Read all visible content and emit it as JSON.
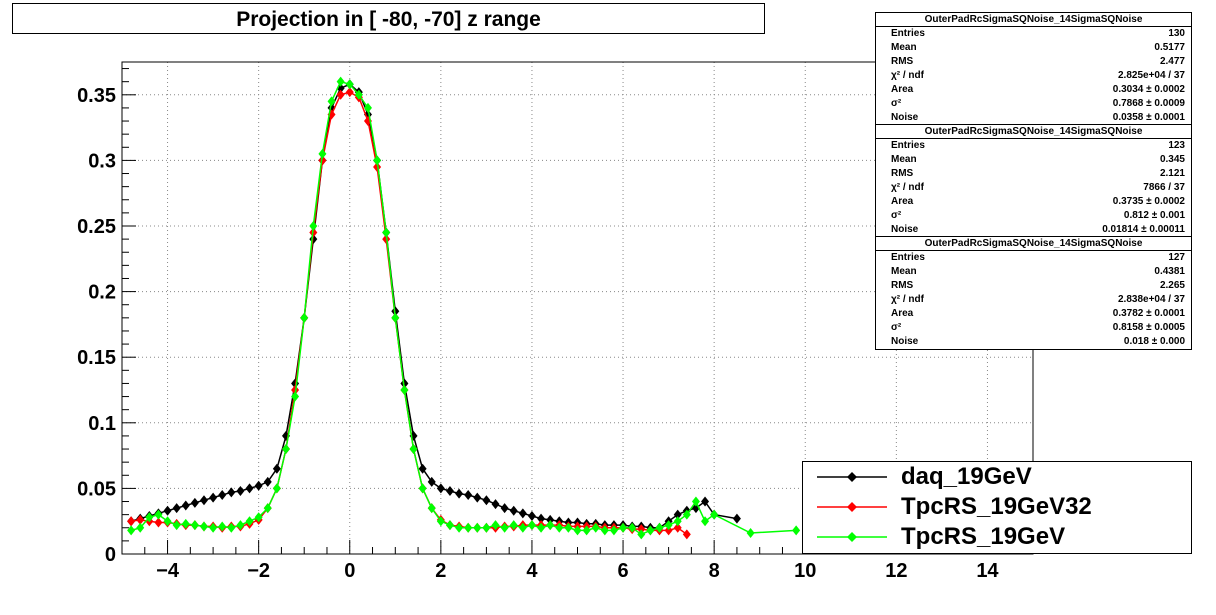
{
  "title": "Projection in [ -80, -70] z range",
  "chart_data": {
    "type": "scatter",
    "xlim": [
      -5,
      15
    ],
    "ylim": [
      0,
      0.375
    ],
    "grid": true,
    "xticks": [
      "−4",
      "−2",
      "0",
      "2",
      "4",
      "6",
      "8",
      "10",
      "12",
      "14"
    ],
    "xtick_values": [
      -4,
      -2,
      0,
      2,
      4,
      6,
      8,
      10,
      12,
      14
    ],
    "yticks": [
      "0",
      "0.05",
      "0.1",
      "0.15",
      "0.2",
      "0.25",
      "0.3",
      "0.35"
    ],
    "ytick_values": [
      0,
      0.05,
      0.1,
      0.15,
      0.2,
      0.25,
      0.3,
      0.35
    ],
    "legend_position": "bottom-right",
    "series": [
      {
        "name": "daq_19GeV",
        "color": "#000000",
        "x": [
          -4.8,
          -4.6,
          -4.4,
          -4.2,
          -4.0,
          -3.8,
          -3.6,
          -3.4,
          -3.2,
          -3.0,
          -2.8,
          -2.6,
          -2.4,
          -2.2,
          -2.0,
          -1.8,
          -1.6,
          -1.4,
          -1.2,
          -1.0,
          -0.8,
          -0.6,
          -0.4,
          -0.2,
          0.0,
          0.2,
          0.4,
          0.6,
          0.8,
          1.0,
          1.2,
          1.4,
          1.6,
          1.8,
          2.0,
          2.2,
          2.4,
          2.6,
          2.8,
          3.0,
          3.2,
          3.4,
          3.6,
          3.8,
          4.0,
          4.2,
          4.4,
          4.6,
          4.8,
          5.0,
          5.2,
          5.4,
          5.6,
          5.8,
          6.0,
          6.2,
          6.4,
          6.6,
          6.8,
          7.0,
          7.2,
          7.4,
          7.6,
          7.8,
          8.0,
          8.5
        ],
        "y": [
          0.025,
          0.027,
          0.029,
          0.031,
          0.033,
          0.035,
          0.037,
          0.039,
          0.041,
          0.043,
          0.045,
          0.047,
          0.048,
          0.05,
          0.052,
          0.055,
          0.065,
          0.09,
          0.13,
          0.18,
          0.24,
          0.3,
          0.34,
          0.355,
          0.358,
          0.352,
          0.335,
          0.3,
          0.245,
          0.185,
          0.13,
          0.09,
          0.065,
          0.055,
          0.05,
          0.048,
          0.046,
          0.045,
          0.043,
          0.041,
          0.038,
          0.035,
          0.033,
          0.031,
          0.029,
          0.027,
          0.026,
          0.025,
          0.024,
          0.024,
          0.023,
          0.023,
          0.022,
          0.022,
          0.022,
          0.021,
          0.021,
          0.02,
          0.02,
          0.025,
          0.03,
          0.033,
          0.035,
          0.04,
          0.03,
          0.027
        ]
      },
      {
        "name": "TpcRS_19GeV32",
        "color": "#ff0000",
        "x": [
          -4.8,
          -4.6,
          -4.4,
          -4.2,
          -4.0,
          -3.8,
          -3.6,
          -3.4,
          -3.2,
          -3.0,
          -2.8,
          -2.6,
          -2.4,
          -2.2,
          -2.0,
          -1.8,
          -1.6,
          -1.4,
          -1.2,
          -1.0,
          -0.8,
          -0.6,
          -0.4,
          -0.2,
          0.0,
          0.2,
          0.4,
          0.6,
          0.8,
          1.0,
          1.2,
          1.4,
          1.6,
          1.8,
          2.0,
          2.2,
          2.4,
          2.6,
          2.8,
          3.0,
          3.2,
          3.4,
          3.6,
          3.8,
          4.0,
          4.2,
          4.4,
          4.6,
          4.8,
          5.0,
          5.2,
          5.4,
          5.6,
          5.8,
          6.0,
          6.2,
          6.4,
          6.6,
          6.8,
          7.0,
          7.2,
          7.4
        ],
        "y": [
          0.025,
          0.026,
          0.025,
          0.024,
          0.024,
          0.023,
          0.022,
          0.022,
          0.021,
          0.021,
          0.02,
          0.021,
          0.021,
          0.023,
          0.026,
          0.035,
          0.05,
          0.08,
          0.125,
          0.18,
          0.245,
          0.3,
          0.335,
          0.35,
          0.352,
          0.348,
          0.33,
          0.295,
          0.24,
          0.18,
          0.125,
          0.08,
          0.05,
          0.035,
          0.026,
          0.022,
          0.021,
          0.02,
          0.02,
          0.02,
          0.02,
          0.021,
          0.021,
          0.022,
          0.022,
          0.022,
          0.022,
          0.022,
          0.021,
          0.021,
          0.021,
          0.021,
          0.02,
          0.02,
          0.02,
          0.019,
          0.019,
          0.018,
          0.018,
          0.018,
          0.02,
          0.015
        ]
      },
      {
        "name": "TpcRS_19GeV",
        "color": "#00ff00",
        "x": [
          -4.8,
          -4.6,
          -4.4,
          -4.2,
          -4.0,
          -3.8,
          -3.6,
          -3.4,
          -3.2,
          -3.0,
          -2.8,
          -2.6,
          -2.4,
          -2.2,
          -2.0,
          -1.8,
          -1.6,
          -1.4,
          -1.2,
          -1.0,
          -0.8,
          -0.6,
          -0.4,
          -0.2,
          0.0,
          0.2,
          0.4,
          0.6,
          0.8,
          1.0,
          1.2,
          1.4,
          1.6,
          1.8,
          2.0,
          2.2,
          2.4,
          2.6,
          2.8,
          3.0,
          3.2,
          3.4,
          3.6,
          3.8,
          4.0,
          4.2,
          4.4,
          4.6,
          4.8,
          5.0,
          5.2,
          5.4,
          5.6,
          5.8,
          6.0,
          6.2,
          6.4,
          6.6,
          6.8,
          7.0,
          7.2,
          7.4,
          7.6,
          7.8,
          8.0,
          8.8,
          9.8
        ],
        "y": [
          0.018,
          0.02,
          0.028,
          0.03,
          0.025,
          0.022,
          0.023,
          0.022,
          0.021,
          0.02,
          0.021,
          0.02,
          0.022,
          0.025,
          0.028,
          0.035,
          0.05,
          0.08,
          0.12,
          0.18,
          0.25,
          0.305,
          0.345,
          0.36,
          0.358,
          0.35,
          0.34,
          0.3,
          0.245,
          0.18,
          0.125,
          0.08,
          0.05,
          0.035,
          0.025,
          0.022,
          0.02,
          0.02,
          0.02,
          0.02,
          0.022,
          0.02,
          0.022,
          0.02,
          0.022,
          0.02,
          0.022,
          0.02,
          0.02,
          0.018,
          0.018,
          0.02,
          0.018,
          0.018,
          0.02,
          0.02,
          0.015,
          0.018,
          0.02,
          0.022,
          0.025,
          0.03,
          0.04,
          0.025,
          0.03,
          0.016,
          0.018
        ]
      }
    ]
  },
  "stats_boxes": [
    {
      "title": "OuterPadRcSigmaSQNoise_14SigmaSQNoise",
      "rows": [
        {
          "k": "Entries",
          "v": "130"
        },
        {
          "k": "Mean",
          "v": "0.5177"
        },
        {
          "k": "RMS",
          "v": "2.477"
        },
        {
          "k": "χ² / ndf",
          "v": "2.825e+04 / 37"
        },
        {
          "k": "Area",
          "v": "0.3034 ± 0.0002"
        },
        {
          "k": "σ²",
          "v": "0.7868 ± 0.0009"
        },
        {
          "k": "Noise",
          "v": "0.0358 ± 0.0001"
        }
      ]
    },
    {
      "title": "OuterPadRcSigmaSQNoise_14SigmaSQNoise",
      "rows": [
        {
          "k": "Entries",
          "v": "123"
        },
        {
          "k": "Mean",
          "v": "0.345"
        },
        {
          "k": "RMS",
          "v": "2.121"
        },
        {
          "k": "χ² / ndf",
          "v": "7866 / 37"
        },
        {
          "k": "Area",
          "v": "0.3735 ± 0.0002"
        },
        {
          "k": "σ²",
          "v": "0.812 ± 0.001"
        },
        {
          "k": "Noise",
          "v": "0.01814 ± 0.00011"
        }
      ]
    },
    {
      "title": "OuterPadRcSigmaSQNoise_14SigmaSQNoise",
      "rows": [
        {
          "k": "Entries",
          "v": "127"
        },
        {
          "k": "Mean",
          "v": "0.4381"
        },
        {
          "k": "RMS",
          "v": "2.265"
        },
        {
          "k": "χ² / ndf",
          "v": "2.838e+04 / 37"
        },
        {
          "k": "Area",
          "v": "0.3782 ± 0.0001"
        },
        {
          "k": "σ²",
          "v": "0.8158 ± 0.0005"
        },
        {
          "k": "Noise",
          "v": "0.018 ± 0.000"
        }
      ]
    }
  ]
}
